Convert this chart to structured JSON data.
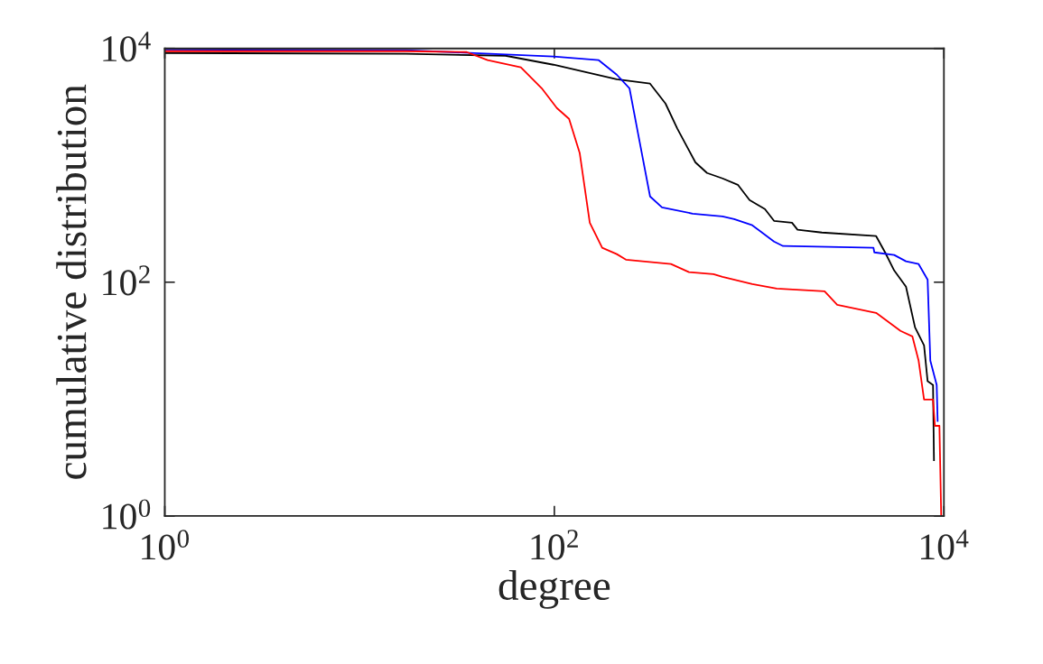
{
  "chart_data": {
    "type": "line",
    "xlabel": "degree",
    "ylabel": "cumulative distribution",
    "log": "xy",
    "grid": false,
    "legend": false,
    "marker": "none",
    "line_style": "solid",
    "xlim": [
      1,
      10000
    ],
    "ylim": [
      1,
      10000
    ],
    "xticks": [
      {
        "value": 1,
        "label": "10$^{0}$"
      },
      {
        "value": 100,
        "label": "10$^{2}$"
      },
      {
        "value": 10000,
        "label": "10$^{4}$"
      }
    ],
    "yticks": [
      {
        "value": 1,
        "label": "10$^{0}$"
      },
      {
        "value": 100,
        "label": "10$^{2}$"
      },
      {
        "value": 10000,
        "label": "10$^{4}$"
      }
    ],
    "series": [
      {
        "color": "#000000",
        "x": [
          1,
          17.3,
          56.1,
          98.9,
          209,
          310,
          372,
          428,
          530,
          608,
          730,
          875,
          1005,
          1205,
          1342,
          1660,
          1772,
          2364,
          4487,
          4989,
          5555,
          6386,
          7107,
          7907,
          8248,
          8792,
          8890
        ],
        "values": [
          9150,
          8990,
          8670,
          7260,
          5460,
          5000,
          3380,
          2060,
          1060,
          860,
          773,
          682,
          504,
          422,
          335,
          323,
          281,
          266,
          248,
          180,
          126,
          91.5,
          41.1,
          28.8,
          14.2,
          13.2,
          3.0
        ]
      },
      {
        "color": "#0000ff",
        "x": [
          1,
          17.3,
          98.9,
          169,
          209,
          243,
          270,
          310,
          357,
          513,
          730,
          838,
          1038,
          1342,
          1493,
          4349,
          4393,
          5555,
          6386,
          7416,
          8248,
          8516,
          9183,
          9285
        ],
        "values": [
          9820,
          9660,
          8530,
          7940,
          5970,
          4570,
          1810,
          542,
          437,
          386,
          366,
          347,
          307,
          223,
          204,
          197,
          180,
          171,
          151,
          143,
          105,
          21.3,
          13.2,
          6.5
        ]
      },
      {
        "color": "#ff0000",
        "x": [
          1,
          17.3,
          35.5,
          45.4,
          67.3,
          86.1,
          103,
          119,
          135,
          152,
          176,
          209,
          233,
          397,
          491,
          656,
          730,
          1038,
          1386,
          2440,
          2833,
          4487,
          5985,
          6886,
          7416,
          7907,
          8792,
          8990,
          9483,
          9685
        ],
        "values": [
          9480,
          9480,
          9310,
          7940,
          6890,
          4570,
          3090,
          2500,
          1270,
          323,
          197,
          174,
          156,
          143,
          122,
          117,
          111,
          96.5,
          88.3,
          83.7,
          64.1,
          54.6,
          38.3,
          34.4,
          21.3,
          9.9,
          9.9,
          5.9,
          5.9,
          1
        ]
      }
    ]
  }
}
